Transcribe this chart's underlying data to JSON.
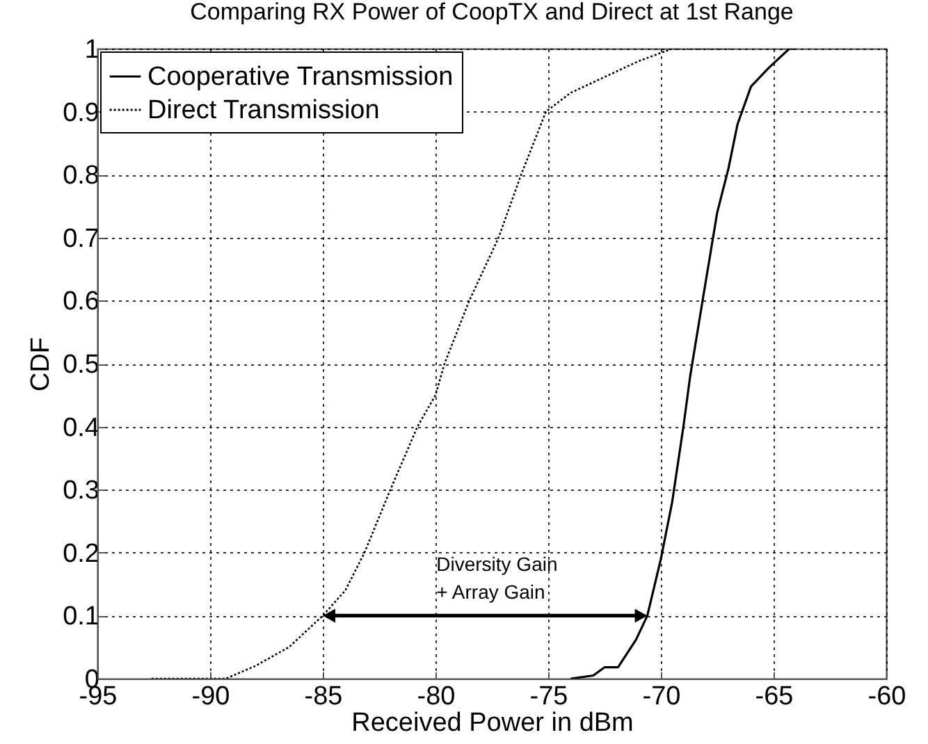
{
  "chart_data": {
    "type": "line",
    "title": "Comparing RX Power of CoopTX and Direct at 1st Range",
    "xlabel": "Received Power in dBm",
    "ylabel": "CDF",
    "xlim": [
      -95,
      -60
    ],
    "xticks": [
      -95,
      -90,
      -85,
      -80,
      -75,
      -70,
      -65,
      -60
    ],
    "ylim": [
      0,
      1
    ],
    "yticks": [
      0,
      0.1,
      0.2,
      0.3,
      0.4,
      0.5,
      0.6,
      0.7,
      0.8,
      0.9,
      1
    ],
    "grid": true,
    "legend": "top left",
    "series": [
      {
        "name": "Cooperative Transmission",
        "color": "#000000",
        "line_style": "solid",
        "x": [
          -74.0,
          -73.0,
          -72.5,
          -71.9,
          -71.1,
          -70.6,
          -70.0,
          -69.5,
          -69.0,
          -68.7,
          -68.15,
          -67.5,
          -67.0,
          -66.6,
          -66.0,
          -65.2,
          -64.3,
          -64.0
        ],
        "values": [
          0,
          0.005,
          0.018,
          0.018,
          0.062,
          0.1,
          0.19,
          0.28,
          0.4,
          0.48,
          0.6,
          0.74,
          0.81,
          0.88,
          0.94,
          0.97,
          1.0,
          1.0
        ]
      },
      {
        "name": "Direct Transmission",
        "color": "#000000",
        "line_style": "dotted",
        "x": [
          -92.6,
          -89.3,
          -88.0,
          -86.5,
          -85.0,
          -84.0,
          -83.15,
          -82.0,
          -80.8,
          -80.0,
          -79.6,
          -78.5,
          -77.2,
          -76.2,
          -75.1,
          -74.0,
          -72.8,
          -71.0,
          -69.5,
          -66.9
        ],
        "values": [
          0,
          0,
          0.02,
          0.05,
          0.1,
          0.14,
          0.2,
          0.3,
          0.4,
          0.45,
          0.5,
          0.6,
          0.7,
          0.8,
          0.9,
          0.93,
          0.95,
          0.98,
          1.0,
          1.0
        ]
      }
    ],
    "annotations": [
      "Diversity Gain\n+ Array Gain"
    ]
  }
}
